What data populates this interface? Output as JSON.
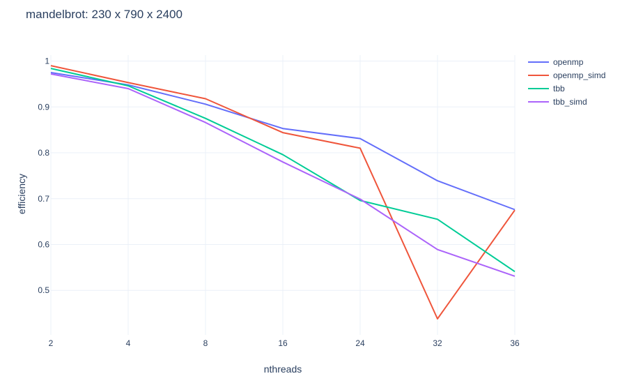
{
  "chart_data": {
    "type": "line",
    "title": "mandelbrot: 230 x 790 x 2400",
    "xlabel": "nthreads",
    "ylabel": "efficiency",
    "categories": [
      "2",
      "4",
      "8",
      "16",
      "24",
      "32",
      "36"
    ],
    "x_axis_type": "category",
    "ylim": [
      0.403,
      1.013
    ],
    "yticks": [
      0.5,
      0.6,
      0.7,
      0.8,
      0.9,
      1
    ],
    "ytick_labels": [
      "0.5",
      "0.6",
      "0.7",
      "0.8",
      "0.9",
      "1"
    ],
    "grid": true,
    "legend_position": "top-right",
    "series": [
      {
        "name": "openmp",
        "color": "#636efa",
        "values": [
          0.975,
          0.948,
          0.906,
          0.853,
          0.831,
          0.739,
          0.676
        ]
      },
      {
        "name": "openmp_simd",
        "color": "#ef553b",
        "values": [
          0.99,
          0.953,
          0.918,
          0.844,
          0.81,
          0.438,
          0.675
        ]
      },
      {
        "name": "tbb",
        "color": "#00cc96",
        "values": [
          0.984,
          0.946,
          0.875,
          0.796,
          0.696,
          0.655,
          0.541
        ]
      },
      {
        "name": "tbb_simd",
        "color": "#ab63fa",
        "values": [
          0.972,
          0.94,
          0.866,
          0.78,
          0.699,
          0.589,
          0.531
        ]
      }
    ]
  }
}
